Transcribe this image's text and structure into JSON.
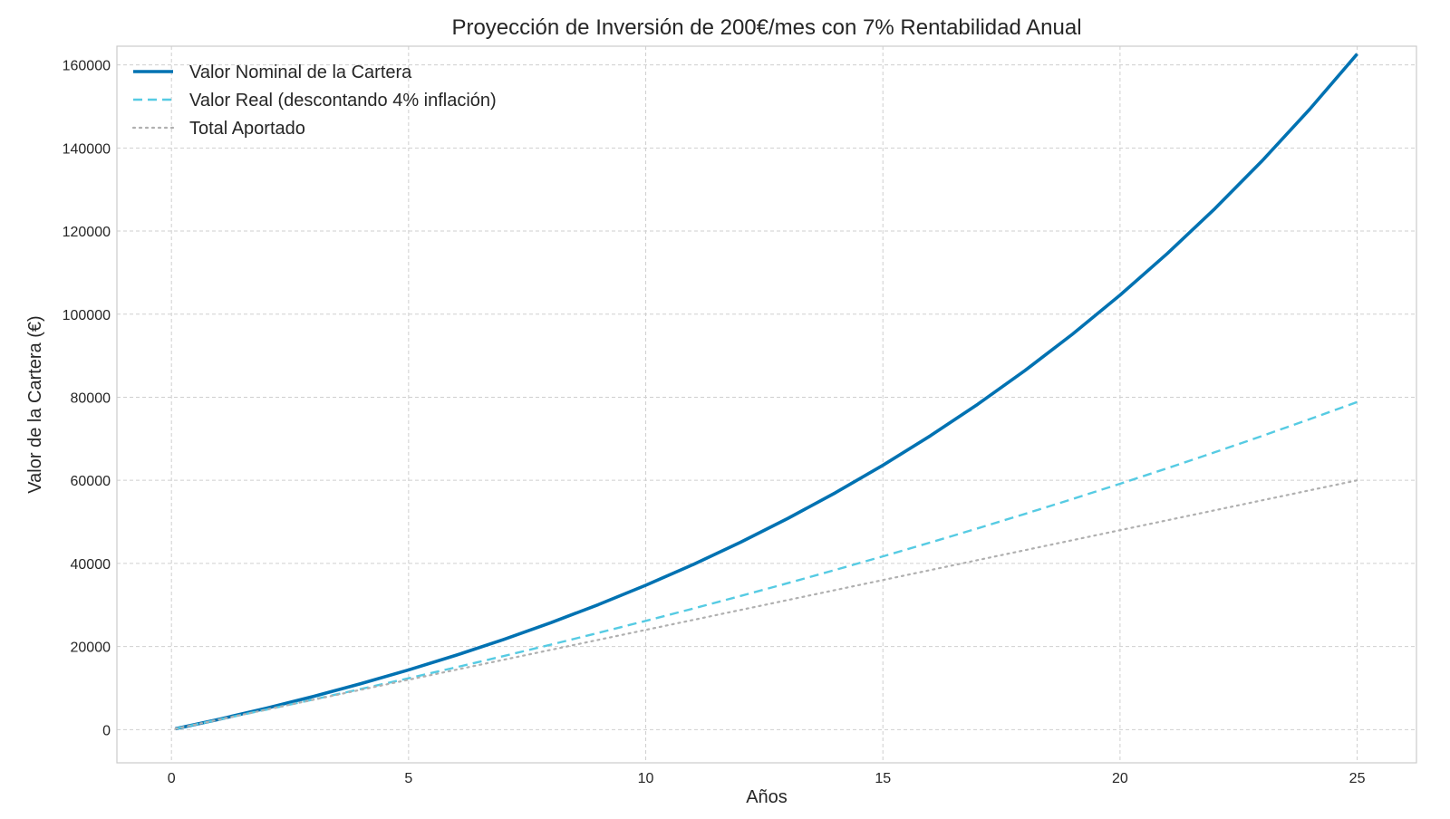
{
  "chart_data": {
    "type": "line",
    "title": "Proyección de Inversión de 200€/mes con 7% Rentabilidad Anual",
    "xlabel": "Años",
    "ylabel": "Valor de la Cartera (€)",
    "xlim": [
      -1.15,
      26.25
    ],
    "ylim": [
      -8000,
      164500
    ],
    "xticks": [
      0,
      5,
      10,
      15,
      20,
      25
    ],
    "xtick_labels": [
      "0",
      "5",
      "10",
      "15",
      "20",
      "25"
    ],
    "yticks": [
      0,
      20000,
      40000,
      60000,
      80000,
      100000,
      120000,
      140000,
      160000
    ],
    "ytick_labels": [
      "0",
      "20000",
      "40000",
      "60000",
      "80000",
      "100000",
      "120000",
      "140000",
      "160000"
    ],
    "grid": true,
    "legend_position": "top-left",
    "x": [
      0.0833,
      1,
      2,
      3,
      4,
      5,
      6,
      7,
      8,
      9,
      10,
      11,
      12,
      13,
      14,
      15,
      16,
      17,
      18,
      19,
      20,
      21,
      22,
      23,
      24,
      25
    ],
    "series": [
      {
        "name": "Valor Nominal de la Cartera",
        "color": "#0072b2",
        "style": "solid",
        "values": [
          200,
          2479,
          5148,
          8009,
          11077,
          14366,
          17893,
          21675,
          25730,
          30078,
          34741,
          39741,
          45103,
          50852,
          57017,
          63627,
          70715,
          78316,
          86466,
          95206,
          104577,
          114625,
          125400,
          136954,
          149343,
          162628
        ]
      },
      {
        "name": "Valor Real (descontando 4% inflación)",
        "color": "#56cbe3",
        "style": "dashed",
        "values": [
          200,
          2407,
          4807,
          7265,
          9781,
          12356,
          14991,
          17689,
          20451,
          23278,
          26172,
          29134,
          32166,
          35270,
          38448,
          41701,
          45032,
          48442,
          51934,
          55510,
          59172,
          62922,
          66763,
          70697,
          74727,
          78855
        ]
      },
      {
        "name": "Total Aportado",
        "color": "#b0b0b0",
        "style": "dotted",
        "values": [
          200,
          2400,
          4800,
          7200,
          9600,
          12000,
          14400,
          16800,
          19200,
          21600,
          24000,
          26400,
          28800,
          31200,
          33600,
          36000,
          38400,
          40800,
          43200,
          45600,
          48000,
          50400,
          52800,
          55200,
          57600,
          60000
        ]
      }
    ]
  }
}
